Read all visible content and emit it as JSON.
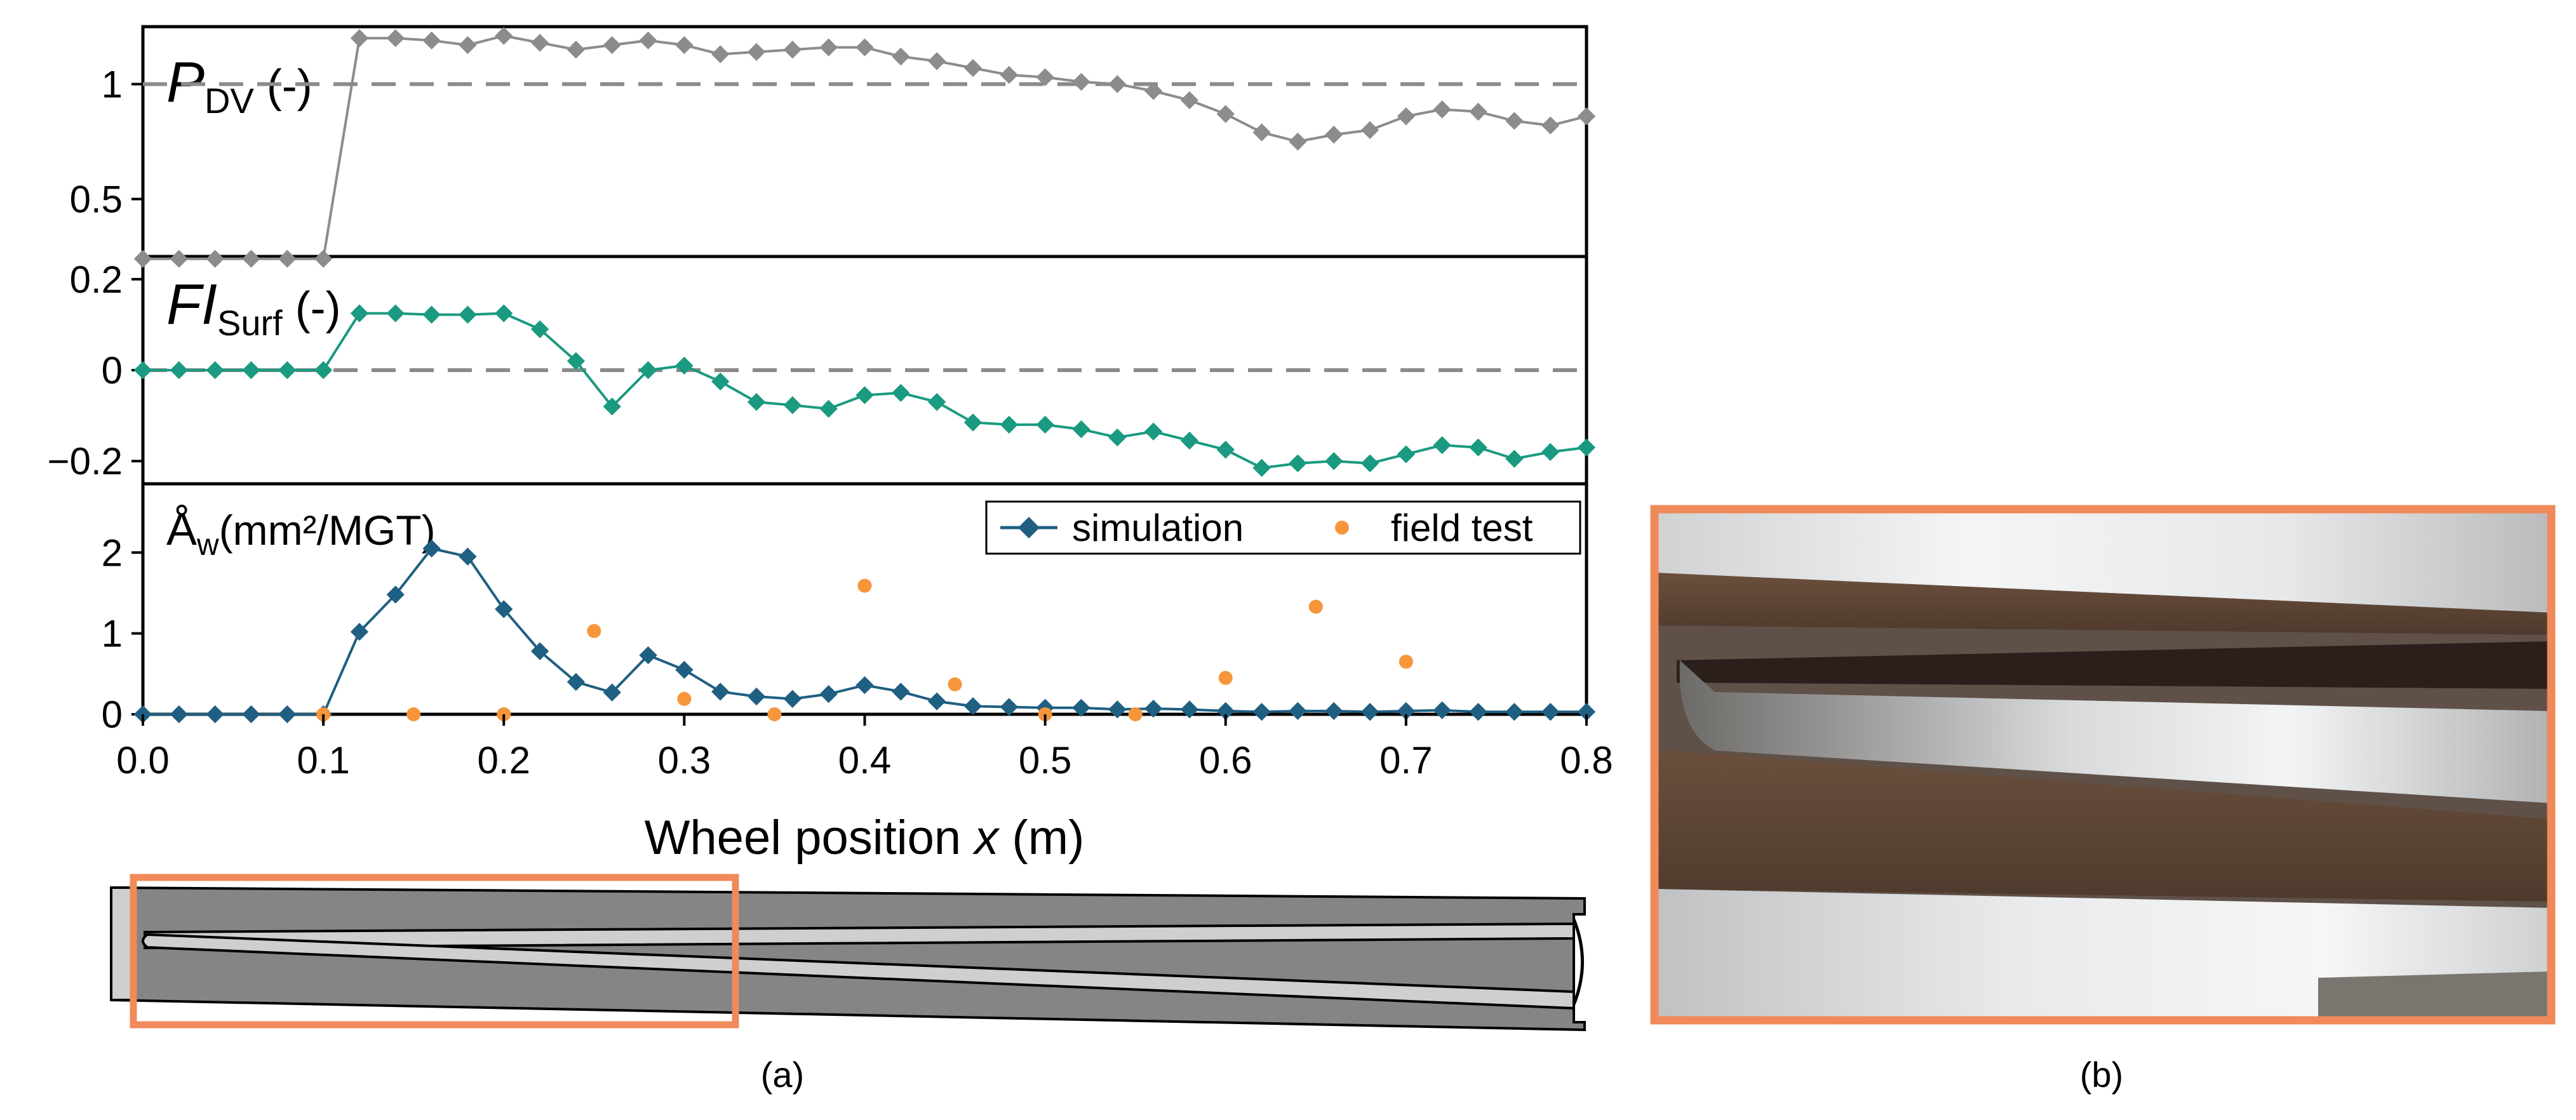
{
  "chart_data": {
    "type": "line",
    "x_axis": {
      "label_prefix": "Wheel position ",
      "label_var": "x",
      "label_unit": " (m)",
      "xlim": [
        0.0,
        0.8
      ],
      "ticks": [
        0.0,
        0.1,
        0.2,
        0.3,
        0.4,
        0.5,
        0.6,
        0.7,
        0.8
      ],
      "tick_labels": [
        "0.0",
        "0.1",
        "0.2",
        "0.3",
        "0.4",
        "0.5",
        "0.6",
        "0.7",
        "0.8"
      ]
    },
    "panels": [
      {
        "id": "pdv",
        "label_main": "P",
        "label_sub": "DV",
        "label_unit": " (-)",
        "ylim": [
          0.25,
          1.25
        ],
        "ticks": [
          0.5,
          1.0
        ],
        "tick_labels": [
          "0.5",
          "1"
        ],
        "ref_line": 1.0,
        "color": "#8c8c8c",
        "x": [
          0.0,
          0.02,
          0.04,
          0.06,
          0.08,
          0.1,
          0.12,
          0.14,
          0.16,
          0.18,
          0.2,
          0.22,
          0.24,
          0.26,
          0.28,
          0.3,
          0.32,
          0.34,
          0.36,
          0.38,
          0.4,
          0.42,
          0.44,
          0.46,
          0.48,
          0.5,
          0.52,
          0.54,
          0.56,
          0.58,
          0.6,
          0.62,
          0.64,
          0.66,
          0.68,
          0.7,
          0.72,
          0.74,
          0.76,
          0.78,
          0.8
        ],
        "y": [
          0.24,
          0.24,
          0.24,
          0.24,
          0.24,
          0.24,
          1.2,
          1.2,
          1.19,
          1.17,
          1.21,
          1.18,
          1.15,
          1.17,
          1.19,
          1.17,
          1.13,
          1.14,
          1.15,
          1.16,
          1.16,
          1.12,
          1.1,
          1.07,
          1.04,
          1.03,
          1.01,
          1.0,
          0.97,
          0.93,
          0.87,
          0.79,
          0.75,
          0.78,
          0.8,
          0.86,
          0.89,
          0.88,
          0.84,
          0.82,
          0.86
        ]
      },
      {
        "id": "fisurf",
        "label_main": "FI",
        "label_sub": "Surf",
        "label_unit": " (-)",
        "ylim": [
          -0.25,
          0.25
        ],
        "ticks": [
          0.2,
          0.0,
          -0.2
        ],
        "tick_labels": [
          "0.2",
          "0",
          "−0.2"
        ],
        "ref_line": 0.0,
        "color": "#1a9a80",
        "x": [
          0.0,
          0.02,
          0.04,
          0.06,
          0.08,
          0.1,
          0.12,
          0.14,
          0.16,
          0.18,
          0.2,
          0.22,
          0.24,
          0.26,
          0.28,
          0.3,
          0.32,
          0.34,
          0.36,
          0.38,
          0.4,
          0.42,
          0.44,
          0.46,
          0.48,
          0.5,
          0.52,
          0.54,
          0.56,
          0.58,
          0.6,
          0.62,
          0.64,
          0.66,
          0.68,
          0.7,
          0.72,
          0.74,
          0.76,
          0.78,
          0.8
        ],
        "y": [
          0.0,
          0.0,
          0.0,
          0.0,
          0.0,
          0.0,
          0.125,
          0.125,
          0.122,
          0.122,
          0.125,
          0.09,
          0.02,
          -0.08,
          0.0,
          0.01,
          -0.025,
          -0.07,
          -0.077,
          -0.085,
          -0.055,
          -0.05,
          -0.07,
          -0.115,
          -0.12,
          -0.12,
          -0.13,
          -0.148,
          -0.135,
          -0.155,
          -0.175,
          -0.215,
          -0.205,
          -0.2,
          -0.205,
          -0.185,
          -0.165,
          -0.17,
          -0.195,
          -0.18,
          -0.17
        ]
      },
      {
        "id": "aw",
        "label_main": "Å",
        "label_sub": "w",
        "label_unit": "(mm²/MGT)",
        "ylim": [
          0.0,
          2.85
        ],
        "ticks": [
          0,
          1,
          2
        ],
        "tick_labels": [
          "0",
          "1",
          "2"
        ],
        "color": "#1f5f82",
        "field_color": "#f7953a",
        "series": [
          {
            "name": "simulation",
            "x": [
              0.0,
              0.02,
              0.04,
              0.06,
              0.08,
              0.1,
              0.12,
              0.14,
              0.16,
              0.18,
              0.2,
              0.22,
              0.24,
              0.26,
              0.28,
              0.3,
              0.32,
              0.34,
              0.36,
              0.38,
              0.4,
              0.42,
              0.44,
              0.46,
              0.48,
              0.5,
              0.52,
              0.54,
              0.56,
              0.58,
              0.6,
              0.62,
              0.64,
              0.66,
              0.68,
              0.7,
              0.72,
              0.74,
              0.76,
              0.78,
              0.8
            ],
            "y": [
              0.0,
              0.0,
              0.0,
              0.0,
              0.0,
              0.0,
              1.02,
              1.48,
              2.05,
              1.95,
              1.3,
              0.78,
              0.4,
              0.27,
              0.73,
              0.55,
              0.28,
              0.22,
              0.19,
              0.25,
              0.36,
              0.28,
              0.16,
              0.1,
              0.09,
              0.08,
              0.08,
              0.06,
              0.07,
              0.06,
              0.04,
              0.03,
              0.04,
              0.04,
              0.03,
              0.04,
              0.05,
              0.03,
              0.03,
              0.03,
              0.03
            ]
          },
          {
            "name": "field test",
            "x": [
              0.1,
              0.15,
              0.2,
              0.25,
              0.3,
              0.35,
              0.4,
              0.45,
              0.5,
              0.55,
              0.6,
              0.65,
              0.7
            ],
            "y": [
              0.0,
              0.0,
              0.0,
              1.03,
              0.19,
              0.0,
              1.59,
              0.37,
              0.0,
              0.0,
              0.45,
              1.33,
              0.65
            ]
          }
        ]
      }
    ],
    "legend": {
      "placement": "top-right of bottom panel",
      "entries": [
        "simulation",
        "field test"
      ]
    },
    "captions": [
      "(a)",
      "(b)"
    ]
  },
  "colors": {
    "highlight_frame": "#f08a5a",
    "rail_dark": "#858585",
    "rail_light": "#cfcfcf",
    "ref_line": "#8a8a8a"
  }
}
